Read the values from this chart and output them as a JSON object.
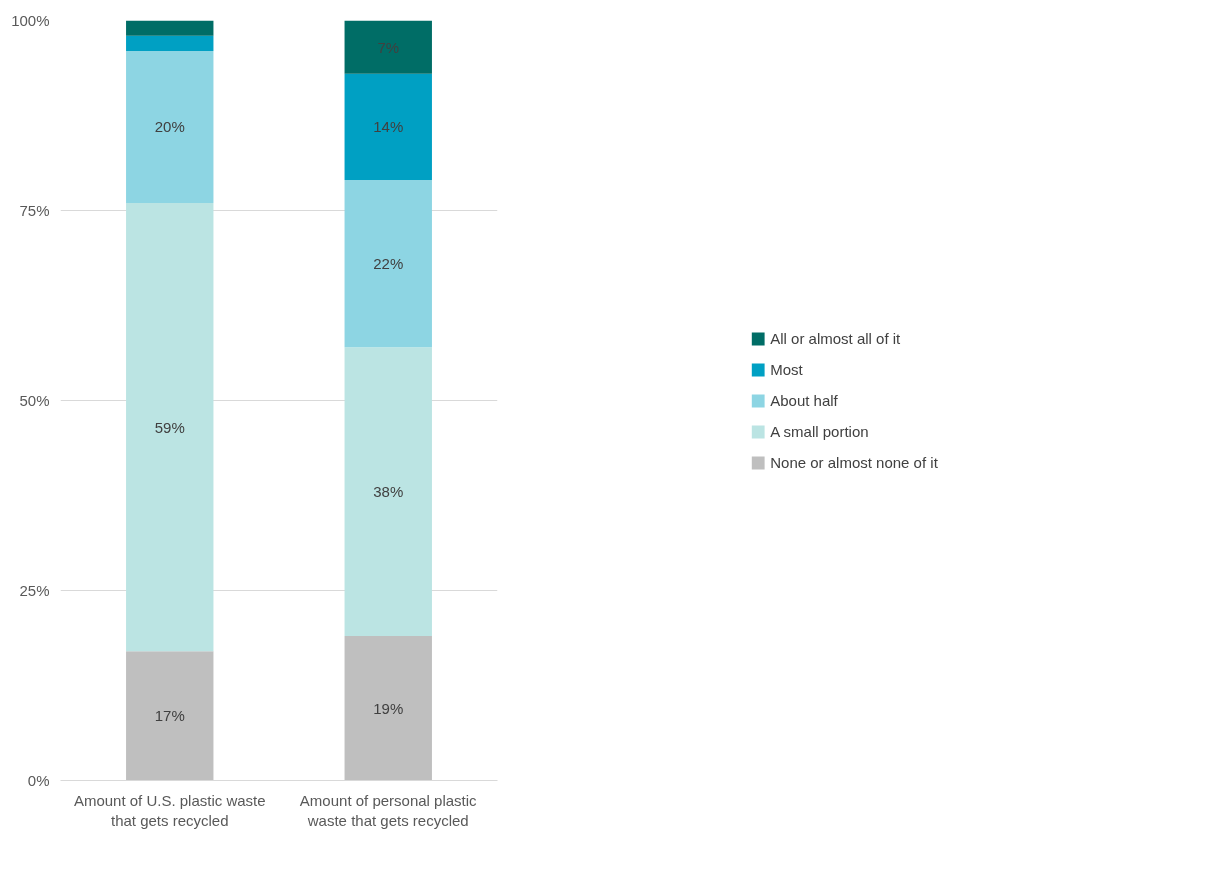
{
  "chart_data": {
    "type": "bar",
    "stacked": true,
    "categories": [
      "Amount of U.S. plastic waste that gets recycled",
      "Amount of personal plastic waste that gets recycled"
    ],
    "series": [
      {
        "name": "None or almost none of it",
        "color": "#bfbfbf",
        "values": [
          17,
          19
        ],
        "value_labels": [
          "17%",
          "19%"
        ]
      },
      {
        "name": "A small portion",
        "color": "#bbe4e3",
        "values": [
          59,
          38
        ],
        "value_labels": [
          "59%",
          "38%"
        ]
      },
      {
        "name": "About half",
        "color": "#8dd5e3",
        "values": [
          20,
          22
        ],
        "value_labels": [
          "20%",
          "22%"
        ]
      },
      {
        "name": "Most",
        "color": "#00a0c3",
        "values": [
          2,
          14
        ],
        "value_labels": [
          null,
          "14%"
        ]
      },
      {
        "name": "All or almost all of it",
        "color": "#006d66",
        "values": [
          2,
          7
        ],
        "value_labels": [
          null,
          "7%"
        ]
      }
    ],
    "ylim": [
      0,
      100
    ],
    "yticks": [
      {
        "value": 0,
        "label": "0%"
      },
      {
        "value": 25,
        "label": "25%"
      },
      {
        "value": 50,
        "label": "50%"
      },
      {
        "value": 75,
        "label": "75%"
      },
      {
        "value": 100,
        "label": "100%"
      }
    ],
    "grid": "y",
    "legend": "right"
  }
}
